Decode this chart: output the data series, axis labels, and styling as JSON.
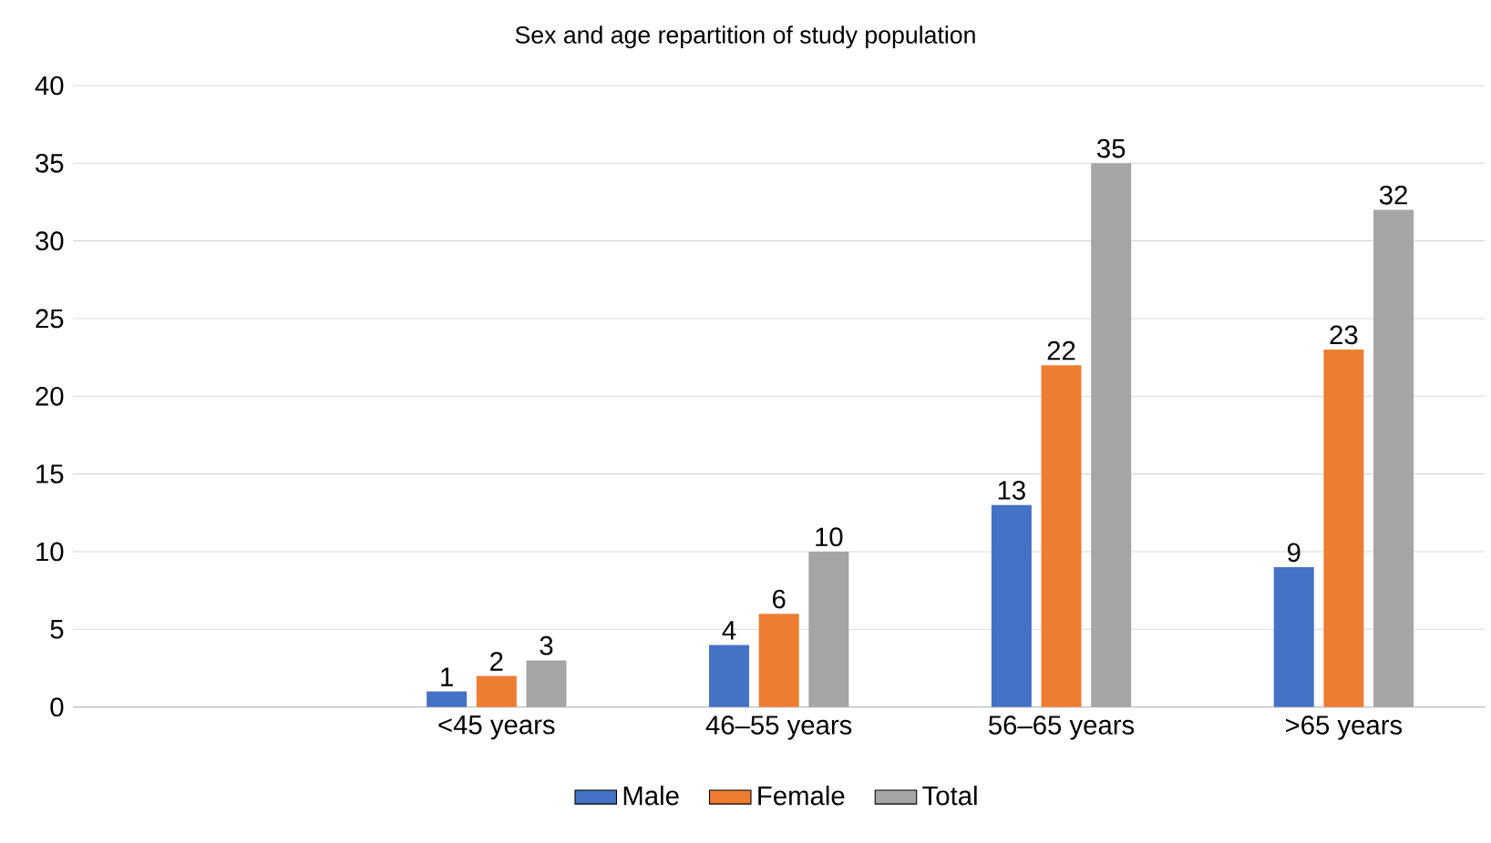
{
  "chart_data": {
    "type": "bar",
    "title": "Sex and age repartition of study population",
    "categories": [
      null,
      "<45 years",
      "46–55 years",
      "56–65 years",
      ">65 years"
    ],
    "series": [
      {
        "name": "Male",
        "color": "#4472c4",
        "values": [
          null,
          1,
          4,
          13,
          9
        ]
      },
      {
        "name": "Female",
        "color": "#ed7d31",
        "values": [
          null,
          2,
          6,
          22,
          23
        ]
      },
      {
        "name": "Total",
        "color": "#a5a5a5",
        "values": [
          null,
          3,
          10,
          35,
          32
        ]
      }
    ],
    "ylim": [
      0,
      40
    ],
    "yticks": [
      0,
      5,
      10,
      15,
      20,
      25,
      30,
      35,
      40
    ],
    "grid": "y",
    "legend": "bottom",
    "data_labels": true
  }
}
